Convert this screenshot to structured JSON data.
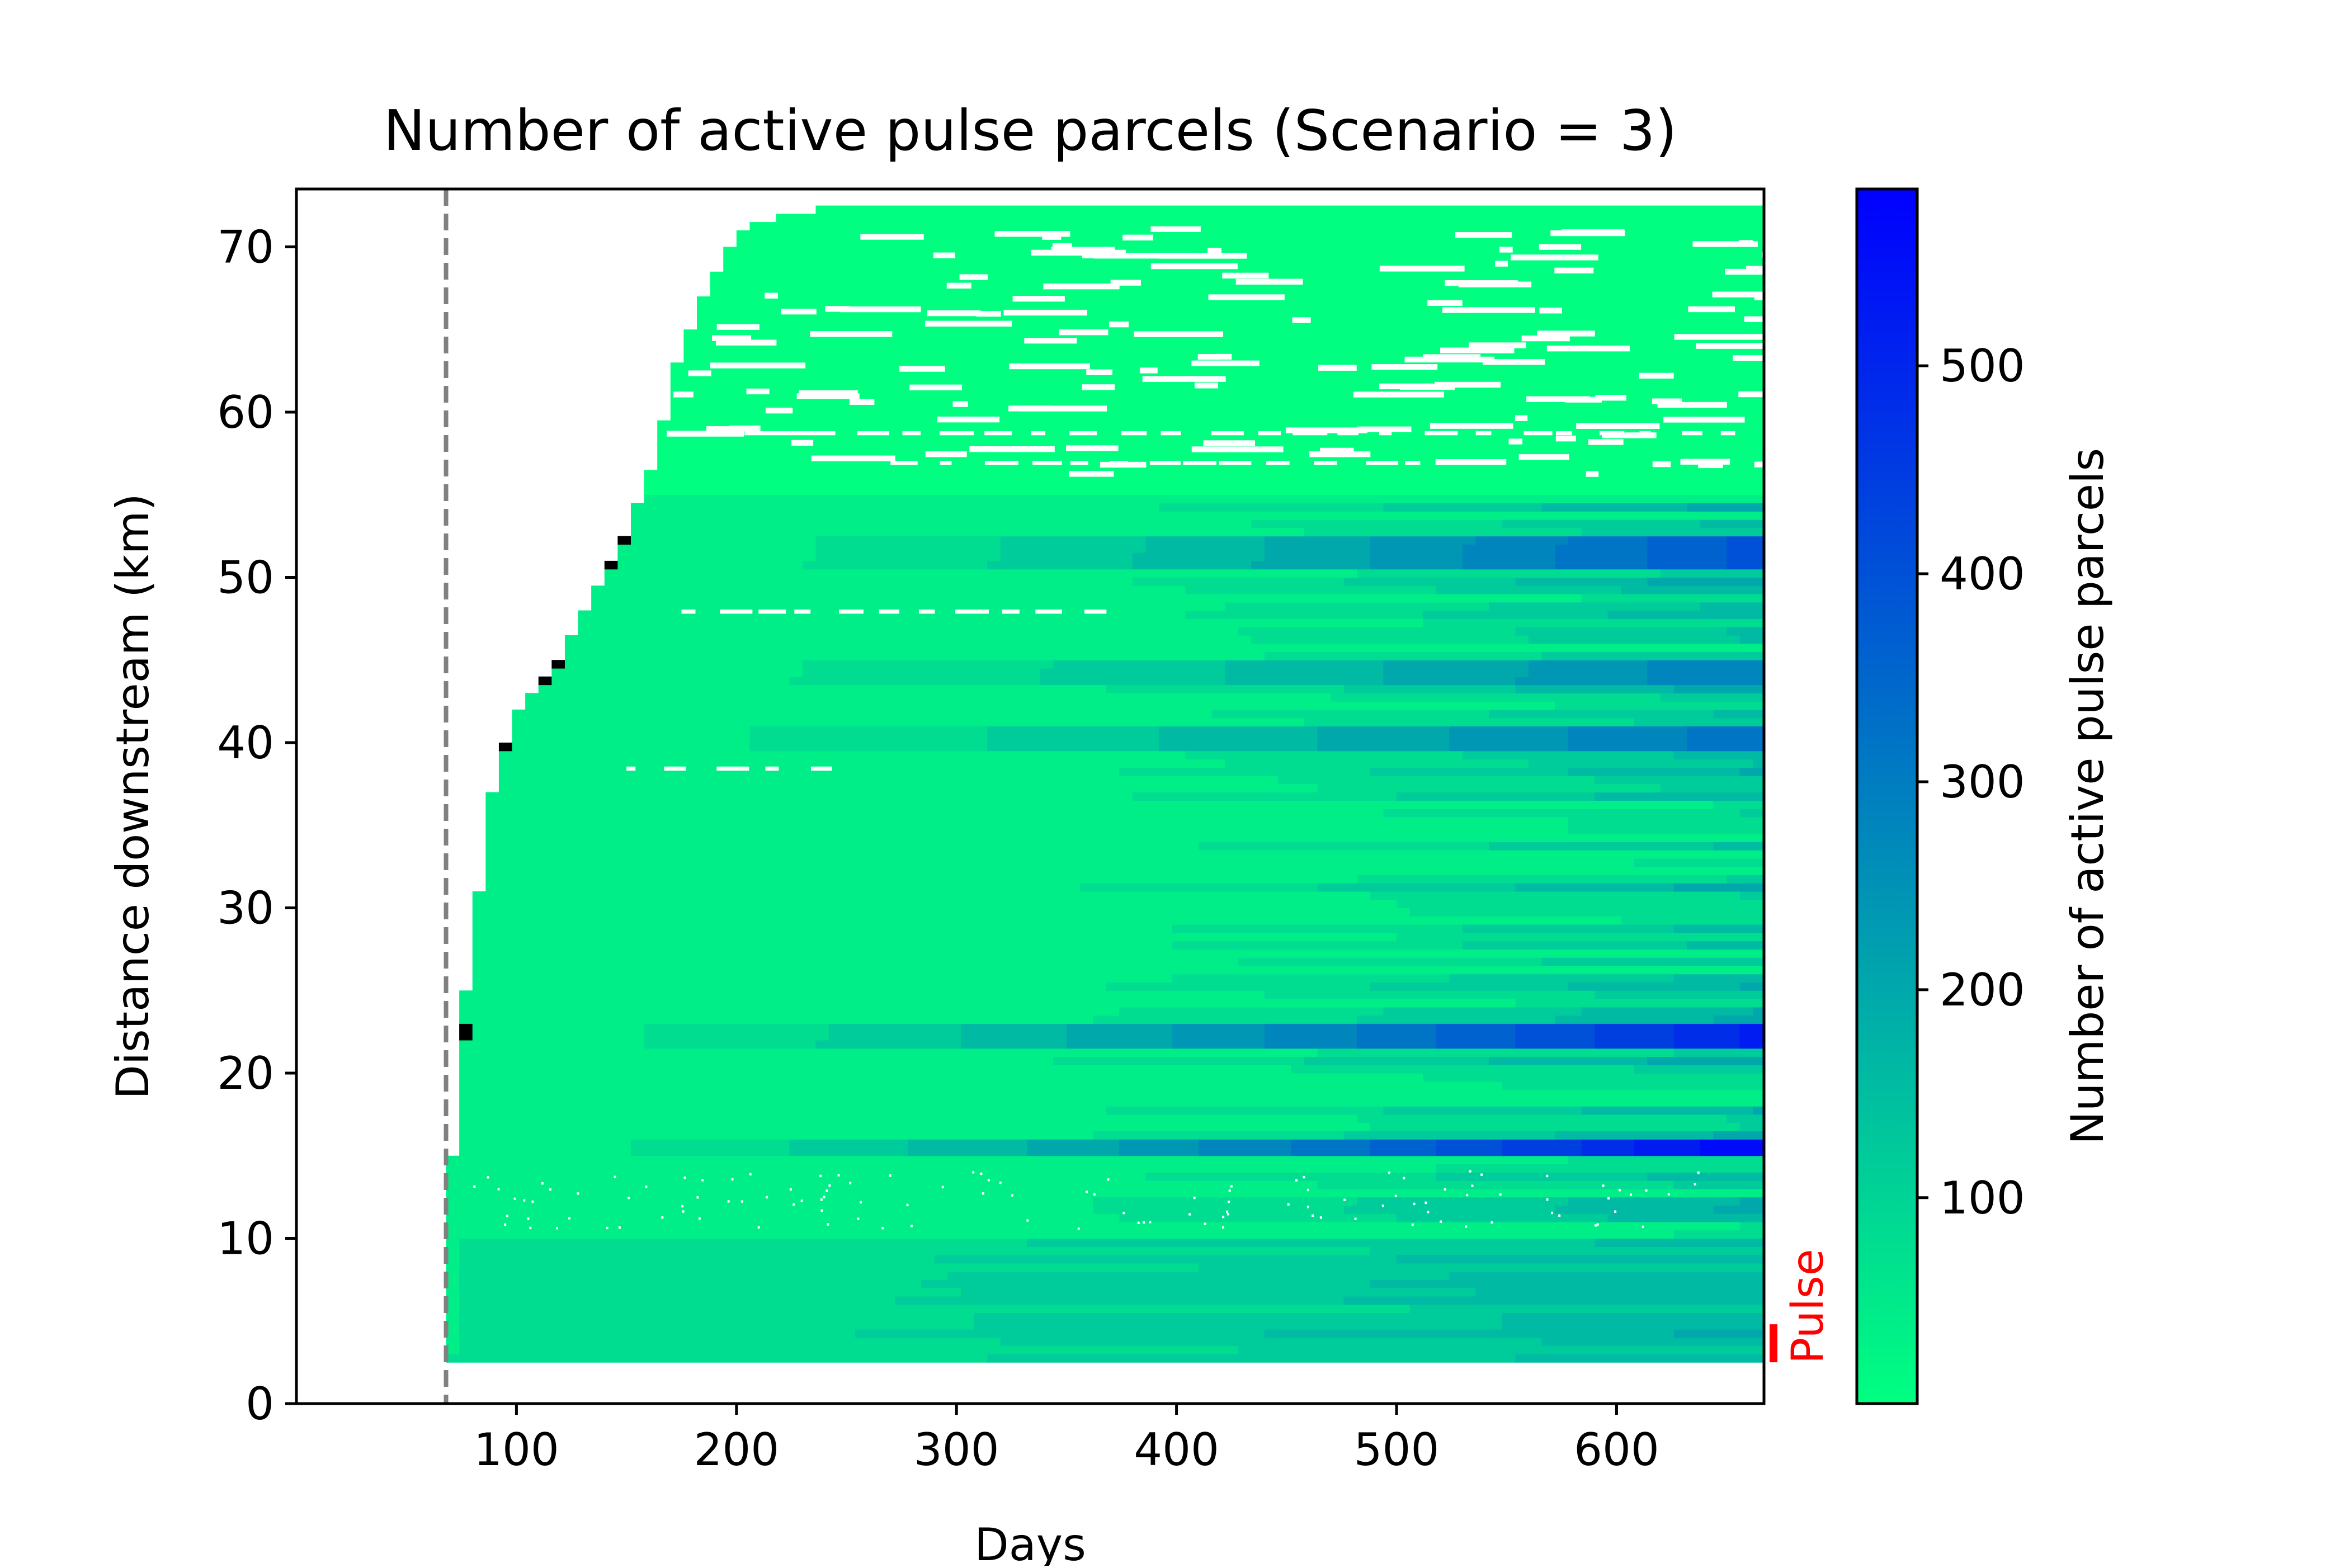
{
  "chart_data": {
    "type": "heatmap",
    "title": "Number of active pulse parcels (Scenario = 3)",
    "xlabel": "Days",
    "ylabel": "Distance downstream (km)",
    "xlim": [
      0,
      667
    ],
    "ylim": [
      0,
      73.5
    ],
    "x_ticks": [
      100,
      200,
      300,
      400,
      500,
      600
    ],
    "y_ticks": [
      0,
      10,
      20,
      30,
      40,
      50,
      60,
      70
    ],
    "grid": false,
    "colorbar": {
      "label": "Number of active pulse parcels",
      "range": [
        1,
        585
      ],
      "ticks": [
        100,
        200,
        300,
        400,
        500
      ],
      "colormap": "winter_r",
      "color_low": "#00FF80",
      "color_high": "#0000FF"
    },
    "pulse_start_day": 68,
    "pulse_line_color": "#808080",
    "pulse_marker": {
      "label": "Pulse",
      "y_range": [
        2.5,
        4.8
      ],
      "color": "#FF0000"
    },
    "domain_km": [
      2.5,
      72.5
    ],
    "front_km_vs_day": [
      [
        68,
        3
      ],
      [
        70,
        10
      ],
      [
        72,
        20
      ],
      [
        78,
        26
      ],
      [
        85,
        33
      ],
      [
        90,
        38
      ],
      [
        100,
        42
      ],
      [
        120,
        45
      ],
      [
        140,
        50
      ],
      [
        160,
        56
      ],
      [
        175,
        64
      ],
      [
        200,
        71
      ],
      [
        240,
        72.5
      ],
      [
        667,
        72.5
      ]
    ],
    "high_count_bands": [
      {
        "km": [
          15.2,
          16.2
        ],
        "value_at_end": 585
      },
      {
        "km": [
          21.3,
          22.8
        ],
        "value_at_end": 520
      },
      {
        "km": [
          50.5,
          52.5
        ],
        "value_at_end": 400
      },
      {
        "km": [
          39.5,
          41.0
        ],
        "value_at_end": 330
      },
      {
        "km": [
          43.5,
          45.0
        ],
        "value_at_end": 300
      }
    ]
  }
}
